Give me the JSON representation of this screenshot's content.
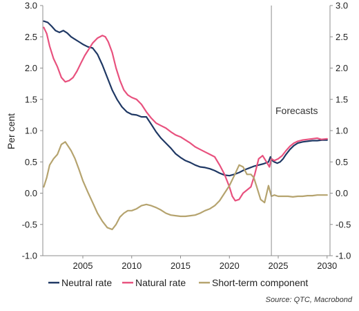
{
  "chart_data": {
    "type": "line",
    "ylabel": "Per cent",
    "ylim": [
      -1.0,
      3.0
    ],
    "xlim": [
      2000.9,
      2030.3
    ],
    "y_ticks": [
      "-1.0",
      "-0.5",
      "0.0",
      "0.5",
      "1.0",
      "1.5",
      "2.0",
      "2.5",
      "3.0"
    ],
    "y_tick_values": [
      -1.0,
      -0.5,
      0.0,
      0.5,
      1.0,
      1.5,
      2.0,
      2.5,
      3.0
    ],
    "x_ticks": [
      "2005",
      "2010",
      "2015",
      "2020",
      "2025",
      "2030"
    ],
    "x_tick_values": [
      2005,
      2010,
      2015,
      2020,
      2025,
      2030
    ],
    "forecast_start": 2024.3,
    "annotation": "Forecasts",
    "source": "Source: QTC, Macrobond",
    "grid": false,
    "legend_position": "bottom",
    "series": [
      {
        "name": "Neutral rate",
        "color": "#1f3864",
        "x": [
          2001.0,
          2001.4,
          2001.8,
          2002.2,
          2002.6,
          2003.0,
          2003.4,
          2003.8,
          2004.2,
          2004.6,
          2005.0,
          2005.5,
          2006.0,
          2006.5,
          2007.0,
          2007.5,
          2008.0,
          2008.5,
          2009.0,
          2009.5,
          2010.0,
          2010.5,
          2011.0,
          2011.5,
          2012.0,
          2012.5,
          2013.0,
          2013.5,
          2014.0,
          2014.5,
          2015.0,
          2015.5,
          2016.0,
          2016.5,
          2017.0,
          2017.5,
          2018.0,
          2018.5,
          2019.0,
          2019.5,
          2020.0,
          2020.5,
          2021.0,
          2021.5,
          2022.0,
          2022.5,
          2023.0,
          2023.5,
          2024.0,
          2024.2,
          2024.4,
          2024.6,
          2024.9,
          2025.2,
          2025.5,
          2025.8,
          2026.2,
          2026.6,
          2027.0,
          2027.5,
          2028.0,
          2028.5,
          2029.0,
          2029.5,
          2030.0
        ],
        "y": [
          2.75,
          2.73,
          2.67,
          2.6,
          2.57,
          2.6,
          2.56,
          2.5,
          2.46,
          2.42,
          2.38,
          2.34,
          2.32,
          2.22,
          2.05,
          1.85,
          1.65,
          1.5,
          1.38,
          1.3,
          1.26,
          1.25,
          1.22,
          1.22,
          1.1,
          0.98,
          0.88,
          0.8,
          0.72,
          0.63,
          0.57,
          0.52,
          0.49,
          0.45,
          0.42,
          0.41,
          0.39,
          0.36,
          0.32,
          0.29,
          0.28,
          0.3,
          0.33,
          0.37,
          0.4,
          0.43,
          0.45,
          0.47,
          0.5,
          0.58,
          0.52,
          0.5,
          0.48,
          0.5,
          0.55,
          0.62,
          0.7,
          0.76,
          0.8,
          0.82,
          0.83,
          0.84,
          0.84,
          0.85,
          0.85
        ]
      },
      {
        "name": "Natural rate",
        "color": "#e8517e",
        "x": [
          2001.0,
          2001.3,
          2001.6,
          2002.0,
          2002.4,
          2002.8,
          2003.2,
          2003.6,
          2004.0,
          2004.4,
          2004.8,
          2005.2,
          2005.6,
          2006.0,
          2006.5,
          2007.0,
          2007.3,
          2007.6,
          2008.0,
          2008.4,
          2008.8,
          2009.2,
          2009.6,
          2010.0,
          2010.5,
          2011.0,
          2011.5,
          2012.0,
          2012.5,
          2013.0,
          2013.5,
          2014.0,
          2014.5,
          2015.0,
          2015.5,
          2016.0,
          2016.5,
          2017.0,
          2017.5,
          2018.0,
          2018.5,
          2019.0,
          2019.5,
          2020.0,
          2020.3,
          2020.6,
          2021.0,
          2021.4,
          2021.8,
          2022.2,
          2022.6,
          2023.0,
          2023.4,
          2023.8,
          2024.1,
          2024.3,
          2024.6,
          2025.0,
          2025.4,
          2025.8,
          2026.2,
          2026.6,
          2027.0,
          2027.5,
          2028.0,
          2028.5,
          2029.0,
          2029.4,
          2030.0
        ],
        "y": [
          2.65,
          2.55,
          2.35,
          2.15,
          2.02,
          1.85,
          1.78,
          1.8,
          1.85,
          1.95,
          2.08,
          2.2,
          2.3,
          2.4,
          2.48,
          2.52,
          2.5,
          2.42,
          2.25,
          2.0,
          1.8,
          1.65,
          1.57,
          1.53,
          1.5,
          1.42,
          1.3,
          1.2,
          1.12,
          1.08,
          1.04,
          0.98,
          0.93,
          0.9,
          0.85,
          0.8,
          0.74,
          0.7,
          0.66,
          0.62,
          0.58,
          0.45,
          0.3,
          0.1,
          -0.05,
          -0.12,
          -0.1,
          0.0,
          0.05,
          0.1,
          0.3,
          0.55,
          0.6,
          0.5,
          0.42,
          0.55,
          0.52,
          0.55,
          0.6,
          0.68,
          0.75,
          0.8,
          0.83,
          0.85,
          0.86,
          0.87,
          0.88,
          0.86,
          0.87
        ]
      },
      {
        "name": "Short-term component",
        "color": "#b5a36e",
        "x": [
          2001.0,
          2001.3,
          2001.6,
          2002.0,
          2002.4,
          2002.8,
          2003.2,
          2003.5,
          2003.8,
          2004.2,
          2004.6,
          2005.0,
          2005.5,
          2006.0,
          2006.5,
          2007.0,
          2007.5,
          2008.0,
          2008.4,
          2008.8,
          2009.2,
          2009.6,
          2010.0,
          2010.5,
          2011.0,
          2011.5,
          2012.0,
          2012.5,
          2013.0,
          2013.5,
          2014.0,
          2014.5,
          2015.0,
          2015.5,
          2016.0,
          2016.5,
          2017.0,
          2017.5,
          2018.0,
          2018.5,
          2019.0,
          2019.5,
          2020.0,
          2020.5,
          2021.0,
          2021.4,
          2021.8,
          2022.2,
          2022.5,
          2022.8,
          2023.2,
          2023.6,
          2024.0,
          2024.3,
          2024.6,
          2025.0,
          2025.5,
          2026.0,
          2026.5,
          2027.0,
          2027.5,
          2028.0,
          2028.5,
          2029.0,
          2029.5,
          2030.0
        ],
        "y": [
          0.1,
          0.25,
          0.45,
          0.55,
          0.62,
          0.78,
          0.82,
          0.75,
          0.68,
          0.55,
          0.38,
          0.2,
          0.02,
          -0.15,
          -0.32,
          -0.45,
          -0.55,
          -0.58,
          -0.5,
          -0.38,
          -0.32,
          -0.28,
          -0.28,
          -0.25,
          -0.2,
          -0.18,
          -0.2,
          -0.23,
          -0.27,
          -0.32,
          -0.35,
          -0.36,
          -0.37,
          -0.37,
          -0.36,
          -0.35,
          -0.32,
          -0.28,
          -0.25,
          -0.2,
          -0.12,
          0.0,
          0.12,
          0.28,
          0.45,
          0.42,
          0.3,
          0.3,
          0.25,
          0.1,
          -0.1,
          -0.15,
          0.12,
          -0.05,
          -0.03,
          -0.05,
          -0.05,
          -0.05,
          -0.06,
          -0.05,
          -0.05,
          -0.04,
          -0.04,
          -0.03,
          -0.03,
          -0.03
        ]
      }
    ]
  }
}
